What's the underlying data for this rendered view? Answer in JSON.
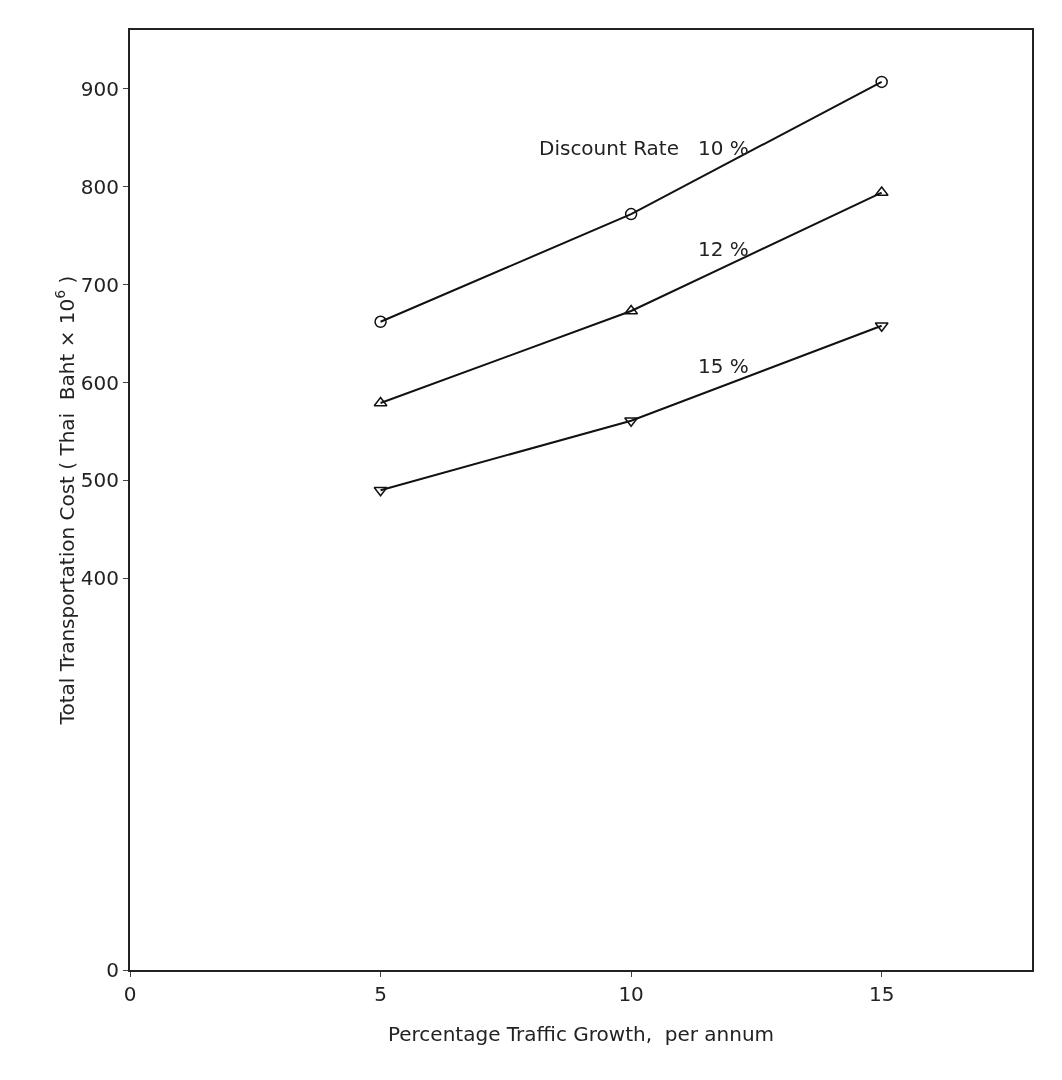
{
  "chart_data": {
    "type": "line",
    "xlabel": "Percentage Traffic Growth,  per annum",
    "ylabel": "Total Transportation Cost ( Thai  Baht × 10$^{6}$ )",
    "legend_title": "Discount Rate",
    "x": [
      5,
      10,
      15
    ],
    "series": [
      {
        "name": "10 %",
        "color": "#111111",
        "values": [
          662,
          772,
          907
        ],
        "marker": "circle"
      },
      {
        "name": "12 %",
        "color": "#111111",
        "values": [
          579,
          673,
          794
        ],
        "marker": "triangle"
      },
      {
        "name": "15 %",
        "color": "#111111",
        "values": [
          490,
          561,
          658
        ],
        "marker": "triangle-down"
      }
    ],
    "xlim": [
      0,
      18
    ],
    "xticks": [
      0,
      5,
      10,
      15
    ],
    "ylim": [
      0,
      960
    ],
    "yticks": [
      0,
      400,
      500,
      600,
      700,
      800,
      900
    ],
    "grid": false,
    "legend": false,
    "line_style": "solid"
  }
}
